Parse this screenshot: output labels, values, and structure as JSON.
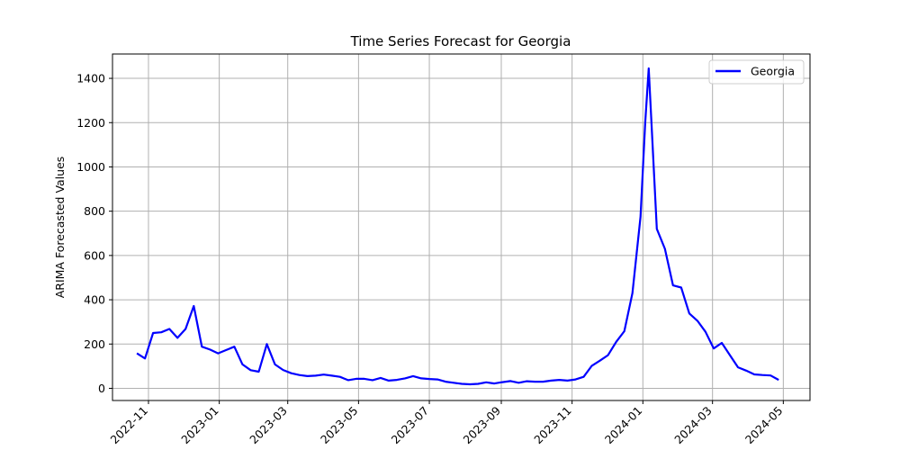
{
  "chart_data": {
    "type": "line",
    "title": "Time Series Forecast for Georgia",
    "xlabel": "",
    "ylabel": "ARIMA Forecasted Values",
    "xlim": [
      "2022-10-01",
      "2024-05-24"
    ],
    "ylim": [
      -55,
      1510
    ],
    "grid": true,
    "legend_position": "top-right",
    "x_ticks": [
      "2022-11",
      "2023-01",
      "2023-03",
      "2023-05",
      "2023-07",
      "2023-09",
      "2023-11",
      "2024-01",
      "2024-03",
      "2024-05"
    ],
    "y_ticks": [
      0,
      200,
      400,
      600,
      800,
      1000,
      1200,
      1400
    ],
    "series": [
      {
        "name": "Georgia",
        "color": "#0000ff",
        "x": [
          "2022-10-22",
          "2022-10-29",
          "2022-11-05",
          "2022-11-12",
          "2022-11-19",
          "2022-11-26",
          "2022-12-03",
          "2022-12-10",
          "2022-12-17",
          "2022-12-24",
          "2022-12-31",
          "2023-01-07",
          "2023-01-14",
          "2023-01-21",
          "2023-01-28",
          "2023-02-04",
          "2023-02-11",
          "2023-02-18",
          "2023-02-25",
          "2023-03-04",
          "2023-03-11",
          "2023-03-18",
          "2023-03-25",
          "2023-04-01",
          "2023-04-08",
          "2023-04-15",
          "2023-04-22",
          "2023-04-29",
          "2023-05-06",
          "2023-05-13",
          "2023-05-20",
          "2023-05-27",
          "2023-06-03",
          "2023-06-10",
          "2023-06-17",
          "2023-06-24",
          "2023-07-01",
          "2023-07-08",
          "2023-07-15",
          "2023-07-22",
          "2023-07-29",
          "2023-08-05",
          "2023-08-12",
          "2023-08-19",
          "2023-08-26",
          "2023-09-02",
          "2023-09-09",
          "2023-09-16",
          "2023-09-23",
          "2023-09-30",
          "2023-10-07",
          "2023-10-14",
          "2023-10-21",
          "2023-10-28",
          "2023-11-04",
          "2023-11-11",
          "2023-11-18",
          "2023-11-25",
          "2023-12-02",
          "2023-12-09",
          "2023-12-16",
          "2023-12-23",
          "2023-12-30",
          "2024-01-03",
          "2024-01-06",
          "2024-01-13",
          "2024-01-20",
          "2024-01-27",
          "2024-02-03",
          "2024-02-10",
          "2024-02-17",
          "2024-02-24",
          "2024-03-02",
          "2024-03-09",
          "2024-03-16",
          "2024-03-23",
          "2024-03-30",
          "2024-04-06",
          "2024-04-13",
          "2024-04-20",
          "2024-04-27"
        ],
        "y": [
          158,
          135,
          250,
          253,
          268,
          228,
          268,
          372,
          188,
          175,
          158,
          173,
          188,
          108,
          82,
          75,
          200,
          108,
          83,
          68,
          60,
          55,
          57,
          62,
          57,
          52,
          37,
          43,
          43,
          37,
          47,
          35,
          38,
          45,
          55,
          45,
          42,
          40,
          30,
          25,
          20,
          18,
          20,
          27,
          22,
          28,
          33,
          25,
          32,
          30,
          30,
          35,
          38,
          35,
          40,
          52,
          102,
          125,
          150,
          210,
          258,
          430,
          775,
          1200,
          1445,
          720,
          630,
          465,
          455,
          338,
          305,
          255,
          180,
          205,
          150,
          95,
          80,
          63,
          60,
          58,
          38
        ]
      }
    ]
  }
}
